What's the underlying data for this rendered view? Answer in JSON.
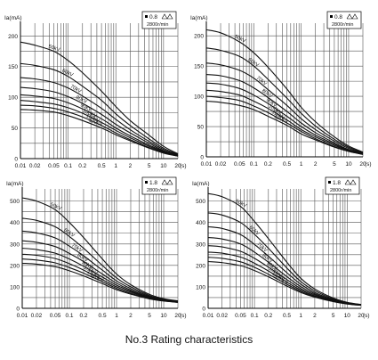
{
  "caption": "No.3 Rating characteristics",
  "chart_data": [
    {
      "type": "line",
      "xscale": "log",
      "xlabel": "(s)",
      "ylabel": "Ia(mA)",
      "legend": {
        "focus": "0.8",
        "speed": "2800r/min",
        "placement": "top-right"
      },
      "xticks": [
        "0.01",
        "0.02",
        "0.05",
        "0.1",
        "0.2",
        "0.5",
        "1",
        "2",
        "5",
        "10",
        "20"
      ],
      "xlim": [
        0.01,
        20
      ],
      "yticks": [
        "0",
        "50",
        "100",
        "150",
        "200"
      ],
      "ylim": [
        0,
        215
      ],
      "series": [
        {
          "name": "50kV",
          "x": [
            0.01,
            0.02,
            0.05,
            0.1,
            0.2,
            0.5,
            1,
            2,
            5,
            10,
            20
          ],
          "y": [
            190,
            185,
            175,
            160,
            140,
            110,
            85,
            62,
            38,
            20,
            8
          ]
        },
        {
          "name": "60kV",
          "x": [
            0.01,
            0.02,
            0.05,
            0.1,
            0.2,
            0.5,
            1,
            2,
            5,
            10,
            20
          ],
          "y": [
            155,
            152,
            145,
            134,
            118,
            95,
            73,
            54,
            32,
            17,
            7
          ]
        },
        {
          "name": "70kV",
          "x": [
            0.01,
            0.02,
            0.05,
            0.1,
            0.2,
            0.5,
            1,
            2,
            5,
            10,
            20
          ],
          "y": [
            132,
            130,
            124,
            115,
            102,
            82,
            64,
            47,
            28,
            15,
            6
          ]
        },
        {
          "name": "80kV",
          "x": [
            0.01,
            0.02,
            0.05,
            0.1,
            0.2,
            0.5,
            1,
            2,
            5,
            10,
            20
          ],
          "y": [
            116,
            114,
            109,
            101,
            90,
            72,
            56,
            42,
            25,
            13,
            5
          ]
        },
        {
          "name": "90kV",
          "x": [
            0.01,
            0.02,
            0.05,
            0.1,
            0.2,
            0.5,
            1,
            2,
            5,
            10,
            20
          ],
          "y": [
            104,
            102,
            98,
            91,
            81,
            65,
            50,
            37,
            22,
            12,
            5
          ]
        },
        {
          "name": "100kV",
          "x": [
            0.01,
            0.02,
            0.05,
            0.1,
            0.2,
            0.5,
            1,
            2,
            5,
            10,
            20
          ],
          "y": [
            95,
            93,
            89,
            83,
            74,
            59,
            46,
            34,
            20,
            11,
            4
          ]
        },
        {
          "name": "110kV",
          "x": [
            0.01,
            0.02,
            0.05,
            0.1,
            0.2,
            0.5,
            1,
            2,
            5,
            10,
            20
          ],
          "y": [
            87,
            86,
            82,
            76,
            68,
            54,
            42,
            31,
            18,
            10,
            4
          ]
        },
        {
          "name": "120kV",
          "x": [
            0.01,
            0.02,
            0.05,
            0.1,
            0.2,
            0.5,
            1,
            2,
            5,
            10,
            20
          ],
          "y": [
            80,
            79,
            76,
            70,
            62,
            50,
            39,
            29,
            17,
            9,
            4
          ]
        }
      ]
    },
    {
      "type": "line",
      "xscale": "log",
      "xlabel": "(s)",
      "ylabel": "Ia(mA)",
      "legend": {
        "focus": "0.8",
        "speed": "2800r/min",
        "placement": "top-right"
      },
      "xticks": [
        "0.01",
        "0.02",
        "0.05",
        "0.1",
        "0.2",
        "0.5",
        "1",
        "2",
        "5",
        "10",
        "20"
      ],
      "xlim": [
        0.01,
        20
      ],
      "yticks": [
        "0",
        "50",
        "100",
        "150",
        "200"
      ],
      "ylim": [
        0,
        215
      ],
      "series": [
        {
          "name": "50kV",
          "x": [
            0.01,
            0.02,
            0.05,
            0.1,
            0.2,
            0.5,
            1,
            2,
            5,
            10,
            20
          ],
          "y": [
            210,
            205,
            190,
            172,
            148,
            112,
            82,
            58,
            33,
            18,
            8
          ]
        },
        {
          "name": "60kV",
          "x": [
            0.01,
            0.02,
            0.05,
            0.1,
            0.2,
            0.5,
            1,
            2,
            5,
            10,
            20
          ],
          "y": [
            180,
            176,
            166,
            150,
            128,
            97,
            72,
            51,
            29,
            16,
            7
          ]
        },
        {
          "name": "70kV",
          "x": [
            0.01,
            0.02,
            0.05,
            0.1,
            0.2,
            0.5,
            1,
            2,
            5,
            10,
            20
          ],
          "y": [
            155,
            152,
            143,
            130,
            111,
            85,
            63,
            45,
            26,
            14,
            6
          ]
        },
        {
          "name": "80kV",
          "x": [
            0.01,
            0.02,
            0.05,
            0.1,
            0.2,
            0.5,
            1,
            2,
            5,
            10,
            20
          ],
          "y": [
            136,
            134,
            126,
            114,
            98,
            75,
            56,
            40,
            23,
            12,
            6
          ]
        },
        {
          "name": "90kV",
          "x": [
            0.01,
            0.02,
            0.05,
            0.1,
            0.2,
            0.5,
            1,
            2,
            5,
            10,
            20
          ],
          "y": [
            122,
            120,
            113,
            102,
            88,
            67,
            50,
            36,
            21,
            11,
            5
          ]
        },
        {
          "name": "100kV",
          "x": [
            0.01,
            0.02,
            0.05,
            0.1,
            0.2,
            0.5,
            1,
            2,
            5,
            10,
            20
          ],
          "y": [
            110,
            108,
            102,
            92,
            80,
            61,
            45,
            33,
            19,
            10,
            5
          ]
        },
        {
          "name": "110kV",
          "x": [
            0.01,
            0.02,
            0.05,
            0.1,
            0.2,
            0.5,
            1,
            2,
            5,
            10,
            20
          ],
          "y": [
            100,
            98,
            93,
            84,
            73,
            56,
            42,
            30,
            17,
            9,
            4
          ]
        },
        {
          "name": "120kV",
          "x": [
            0.01,
            0.02,
            0.05,
            0.1,
            0.2,
            0.5,
            1,
            2,
            5,
            10,
            20
          ],
          "y": [
            92,
            90,
            85,
            78,
            67,
            52,
            38,
            28,
            16,
            9,
            4
          ]
        }
      ]
    },
    {
      "type": "line",
      "xscale": "log",
      "xlabel": "(s)",
      "ylabel": "Ia(mA)",
      "legend": {
        "focus": "1.8",
        "speed": "2800r/min",
        "placement": "top-right"
      },
      "xticks": [
        "0.01",
        "0.02",
        "0.05",
        "0.1",
        "0.2",
        "0.5",
        "1",
        "2",
        "5",
        "10",
        "20"
      ],
      "xlim": [
        0.01,
        20
      ],
      "yticks": [
        "0",
        "100",
        "200",
        "300",
        "400",
        "500"
      ],
      "ylim": [
        0,
        540
      ],
      "series": [
        {
          "name": "50kV",
          "x": [
            0.01,
            0.02,
            0.05,
            0.1,
            0.2,
            0.5,
            1,
            2,
            5,
            10,
            20
          ],
          "y": [
            515,
            500,
            460,
            400,
            330,
            230,
            160,
            110,
            65,
            45,
            35
          ]
        },
        {
          "name": "60kV",
          "x": [
            0.01,
            0.02,
            0.05,
            0.1,
            0.2,
            0.5,
            1,
            2,
            5,
            10,
            20
          ],
          "y": [
            420,
            410,
            380,
            335,
            280,
            200,
            142,
            100,
            60,
            42,
            33
          ]
        },
        {
          "name": "70kV",
          "x": [
            0.01,
            0.02,
            0.05,
            0.1,
            0.2,
            0.5,
            1,
            2,
            5,
            10,
            20
          ],
          "y": [
            360,
            352,
            328,
            290,
            245,
            178,
            128,
            92,
            56,
            40,
            32
          ]
        },
        {
          "name": "80kV",
          "x": [
            0.01,
            0.02,
            0.05,
            0.1,
            0.2,
            0.5,
            1,
            2,
            5,
            10,
            20
          ],
          "y": [
            315,
            308,
            288,
            256,
            218,
            160,
            117,
            85,
            53,
            38,
            31
          ]
        },
        {
          "name": "90kV",
          "x": [
            0.01,
            0.02,
            0.05,
            0.1,
            0.2,
            0.5,
            1,
            2,
            5,
            10,
            20
          ],
          "y": [
            280,
            274,
            257,
            230,
            196,
            146,
            108,
            80,
            50,
            37,
            30
          ]
        },
        {
          "name": "100kV",
          "x": [
            0.01,
            0.02,
            0.05,
            0.1,
            0.2,
            0.5,
            1,
            2,
            5,
            10,
            20
          ],
          "y": [
            252,
            247,
            232,
            208,
            178,
            134,
            100,
            75,
            48,
            36,
            29
          ]
        },
        {
          "name": "110kV",
          "x": [
            0.01,
            0.02,
            0.05,
            0.1,
            0.2,
            0.5,
            1,
            2,
            5,
            10,
            20
          ],
          "y": [
            230,
            225,
            212,
            190,
            164,
            124,
            93,
            70,
            46,
            35,
            28
          ]
        },
        {
          "name": "120kV",
          "x": [
            0.01,
            0.02,
            0.05,
            0.1,
            0.2,
            0.5,
            1,
            2,
            5,
            10,
            20
          ],
          "y": [
            210,
            206,
            194,
            175,
            151,
            115,
            87,
            66,
            44,
            34,
            28
          ]
        }
      ]
    },
    {
      "type": "line",
      "xscale": "log",
      "xlabel": "(s)",
      "ylabel": "Ia(mA)",
      "legend": {
        "focus": "1.8",
        "speed": "2800r/min",
        "placement": "top-right"
      },
      "xticks": [
        "0.01",
        "0.02",
        "0.05",
        "0.1",
        "0.2",
        "0.5",
        "1",
        "2",
        "5",
        "10",
        "20"
      ],
      "xlim": [
        0.01,
        20
      ],
      "yticks": [
        "0",
        "100",
        "200",
        "300",
        "400",
        "500"
      ],
      "ylim": [
        0,
        540
      ],
      "series": [
        {
          "name": "50kV",
          "x": [
            0.01,
            0.02,
            0.05,
            0.1,
            0.2,
            0.5,
            1,
            2,
            5,
            10,
            20
          ],
          "y": [
            535,
            520,
            475,
            405,
            325,
            215,
            140,
            90,
            48,
            28,
            18
          ]
        },
        {
          "name": "60kV",
          "x": [
            0.01,
            0.02,
            0.05,
            0.1,
            0.2,
            0.5,
            1,
            2,
            5,
            10,
            20
          ],
          "y": [
            445,
            435,
            400,
            345,
            280,
            188,
            125,
            82,
            44,
            26,
            17
          ]
        },
        {
          "name": "70kV",
          "x": [
            0.01,
            0.02,
            0.05,
            0.1,
            0.2,
            0.5,
            1,
            2,
            5,
            10,
            20
          ],
          "y": [
            380,
            372,
            344,
            298,
            243,
            166,
            112,
            74,
            41,
            25,
            16
          ]
        },
        {
          "name": "80kV",
          "x": [
            0.01,
            0.02,
            0.05,
            0.1,
            0.2,
            0.5,
            1,
            2,
            5,
            10,
            20
          ],
          "y": [
            330,
            323,
            300,
            262,
            215,
            148,
            101,
            68,
            38,
            24,
            16
          ]
        },
        {
          "name": "90kV",
          "x": [
            0.01,
            0.02,
            0.05,
            0.1,
            0.2,
            0.5,
            1,
            2,
            5,
            10,
            20
          ],
          "y": [
            292,
            286,
            266,
            233,
            192,
            134,
            92,
            63,
            36,
            23,
            15
          ]
        },
        {
          "name": "100kV",
          "x": [
            0.01,
            0.02,
            0.05,
            0.1,
            0.2,
            0.5,
            1,
            2,
            5,
            10,
            20
          ],
          "y": [
            262,
            257,
            239,
            210,
            174,
            122,
            85,
            58,
            34,
            22,
            15
          ]
        },
        {
          "name": "110kV",
          "x": [
            0.01,
            0.02,
            0.05,
            0.1,
            0.2,
            0.5,
            1,
            2,
            5,
            10,
            20
          ],
          "y": [
            238,
            233,
            217,
            191,
            159,
            112,
            79,
            55,
            32,
            21,
            14
          ]
        },
        {
          "name": "120kV",
          "x": [
            0.01,
            0.02,
            0.05,
            0.1,
            0.2,
            0.5,
            1,
            2,
            5,
            10,
            20
          ],
          "y": [
            218,
            213,
            199,
            176,
            147,
            104,
            74,
            52,
            31,
            20,
            14
          ]
        }
      ]
    }
  ]
}
